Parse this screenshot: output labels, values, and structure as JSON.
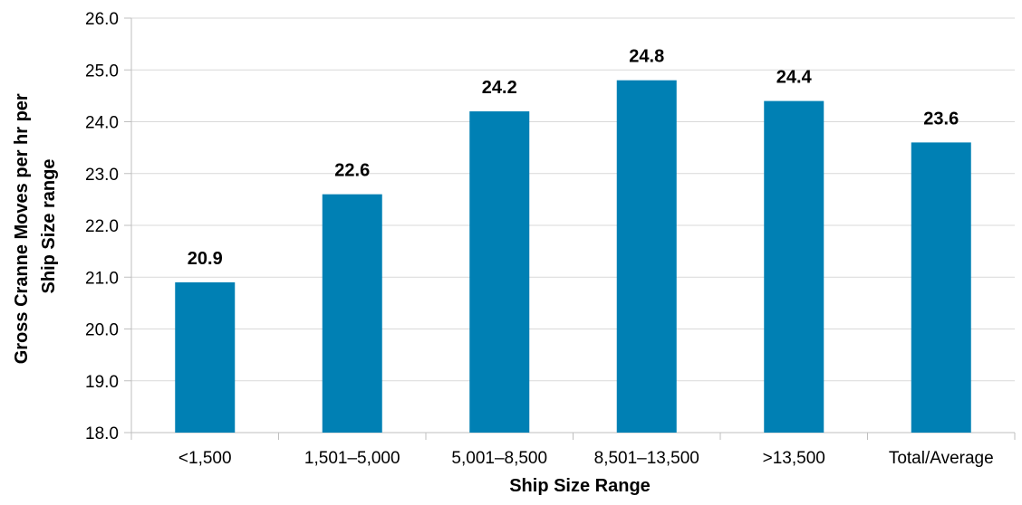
{
  "chart_data": {
    "type": "bar",
    "title": "",
    "xlabel": "Ship Size Range",
    "ylabel_lines": [
      "Gross Cranne Moves per hr per",
      "Ship Size range"
    ],
    "categories": [
      "<1,500",
      "1,501–5,000",
      "5,001–8,500",
      "8,501–13,500",
      ">13,500",
      "Total/Average"
    ],
    "values": [
      20.9,
      22.6,
      24.2,
      24.8,
      24.4,
      23.6
    ],
    "data_labels": [
      "20.9",
      "22.6",
      "24.2",
      "24.8",
      "24.4",
      "23.6"
    ],
    "ylim": [
      18.0,
      26.0
    ],
    "yticks": [
      "18.0",
      "19.0",
      "20.0",
      "21.0",
      "22.0",
      "23.0",
      "24.0",
      "25.0",
      "26.0"
    ],
    "grid": true,
    "bar_color": "#0080B4",
    "grid_color": "#D9D9D9",
    "axis_color": "#BFBFBF"
  }
}
